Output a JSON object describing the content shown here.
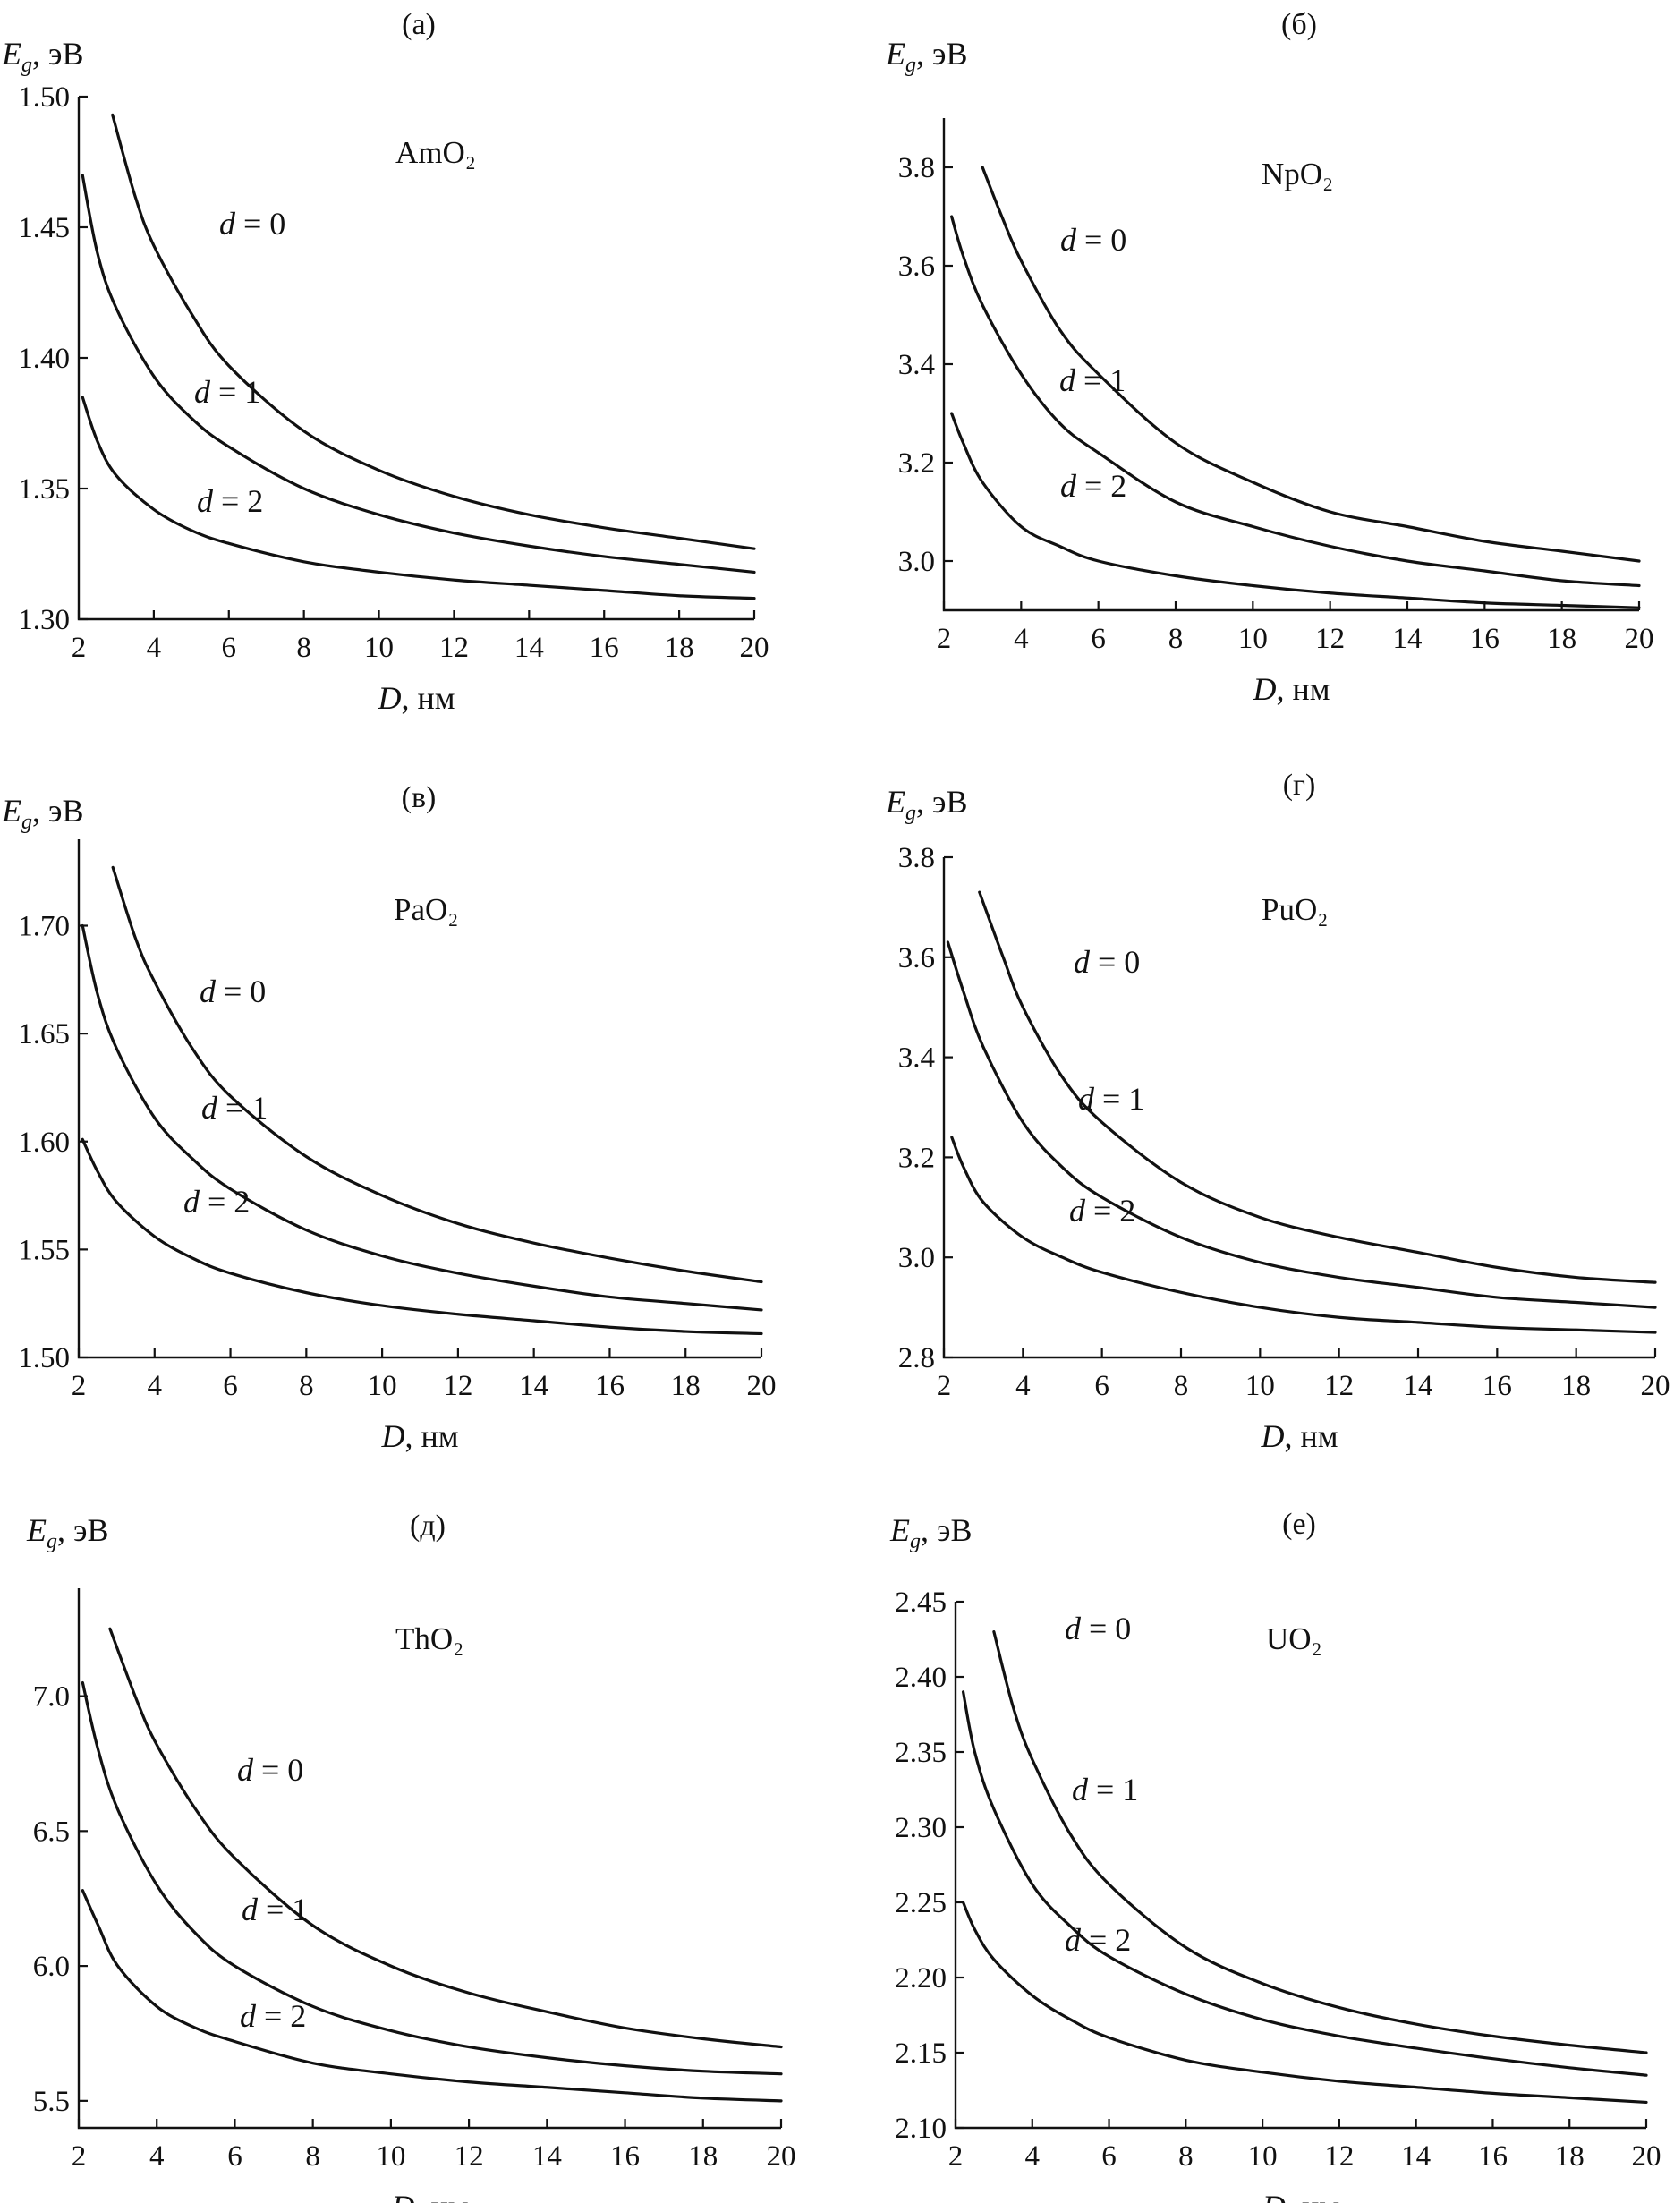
{
  "chart_data": [
    {
      "type": "line",
      "panel": "(а)",
      "compound": "AmO₂",
      "ylabel": "E_g, эВ",
      "xlabel": "D, нм",
      "xlim": [
        2,
        20
      ],
      "ylim": [
        1.3,
        1.5
      ],
      "xticks": [
        "2",
        "4",
        "6",
        "8",
        "10",
        "12",
        "14",
        "16",
        "18",
        "20"
      ],
      "yticks": [
        "1.30",
        "1.35",
        "1.40",
        "1.45",
        "1.50"
      ],
      "series": [
        {
          "name": "d = 0",
          "x": [
            2.9,
            3.5,
            4,
            5,
            6,
            8,
            10,
            12,
            14,
            16,
            18,
            20
          ],
          "values": [
            1.493,
            1.462,
            1.443,
            1.417,
            1.397,
            1.372,
            1.357,
            1.347,
            1.34,
            1.335,
            1.331,
            1.327
          ]
        },
        {
          "name": "d = 1",
          "x": [
            2.1,
            2.5,
            3,
            4,
            5,
            6,
            8,
            10,
            12,
            14,
            16,
            18,
            20
          ],
          "values": [
            1.47,
            1.44,
            1.419,
            1.393,
            1.377,
            1.366,
            1.35,
            1.34,
            1.333,
            1.328,
            1.324,
            1.321,
            1.318
          ]
        },
        {
          "name": "d = 2",
          "x": [
            2.1,
            2.5,
            3,
            4,
            5,
            6,
            8,
            10,
            12,
            14,
            16,
            18,
            20
          ],
          "values": [
            1.385,
            1.368,
            1.355,
            1.342,
            1.334,
            1.329,
            1.322,
            1.318,
            1.315,
            1.313,
            1.311,
            1.309,
            1.308
          ]
        }
      ]
    },
    {
      "type": "line",
      "panel": "(б)",
      "compound": "NpO₂",
      "ylabel": "E_g, эВ",
      "xlabel": "D, нм",
      "xlim": [
        2,
        20
      ],
      "ylim": [
        2.9,
        3.9
      ],
      "xticks": [
        "2",
        "4",
        "6",
        "8",
        "10",
        "12",
        "14",
        "16",
        "18",
        "20"
      ],
      "yticks": [
        "3.0",
        "3.2",
        "3.4",
        "3.6",
        "3.8"
      ],
      "series": [
        {
          "name": "d = 0",
          "x": [
            3,
            3.5,
            4,
            5,
            6,
            8,
            10,
            12,
            14,
            16,
            18,
            20
          ],
          "values": [
            3.8,
            3.7,
            3.61,
            3.47,
            3.38,
            3.24,
            3.16,
            3.1,
            3.07,
            3.04,
            3.02,
            3.0
          ]
        },
        {
          "name": "d = 1",
          "x": [
            2.2,
            2.5,
            3,
            4,
            5,
            6,
            8,
            10,
            12,
            14,
            16,
            18,
            20
          ],
          "values": [
            3.7,
            3.62,
            3.52,
            3.38,
            3.28,
            3.22,
            3.12,
            3.07,
            3.03,
            3.0,
            2.98,
            2.96,
            2.95
          ]
        },
        {
          "name": "d = 2",
          "x": [
            2.2,
            2.5,
            3,
            4,
            5,
            6,
            8,
            10,
            12,
            14,
            16,
            18,
            20
          ],
          "values": [
            3.3,
            3.24,
            3.16,
            3.07,
            3.03,
            3.0,
            2.97,
            2.95,
            2.935,
            2.925,
            2.915,
            2.91,
            2.905
          ]
        }
      ]
    },
    {
      "type": "line",
      "panel": "(в)",
      "compound": "PaO₂",
      "ylabel": "E_g, эВ",
      "xlabel": "D, нм",
      "xlim": [
        2,
        20
      ],
      "ylim": [
        1.5,
        1.74
      ],
      "xticks": [
        "2",
        "4",
        "6",
        "8",
        "10",
        "12",
        "14",
        "16",
        "18",
        "20"
      ],
      "yticks": [
        "1.50",
        "1.55",
        "1.60",
        "1.65",
        "1.70"
      ],
      "series": [
        {
          "name": "d = 0",
          "x": [
            2.9,
            3.5,
            4,
            5,
            6,
            8,
            10,
            12,
            14,
            16,
            18,
            20
          ],
          "values": [
            1.727,
            1.694,
            1.674,
            1.643,
            1.621,
            1.593,
            1.575,
            1.562,
            1.553,
            1.546,
            1.54,
            1.535
          ]
        },
        {
          "name": "d = 1",
          "x": [
            2.1,
            2.5,
            3,
            4,
            5,
            6,
            8,
            10,
            12,
            14,
            16,
            18,
            20
          ],
          "values": [
            1.7,
            1.668,
            1.643,
            1.611,
            1.592,
            1.578,
            1.559,
            1.547,
            1.539,
            1.533,
            1.528,
            1.525,
            1.522
          ]
        },
        {
          "name": "d = 2",
          "x": [
            2.1,
            2.5,
            3,
            4,
            5,
            6,
            8,
            10,
            12,
            14,
            16,
            18,
            20
          ],
          "values": [
            1.601,
            1.586,
            1.572,
            1.556,
            1.546,
            1.539,
            1.53,
            1.524,
            1.52,
            1.517,
            1.514,
            1.512,
            1.511
          ]
        }
      ]
    },
    {
      "type": "line",
      "panel": "(г)",
      "compound": "PuO₂",
      "ylabel": "E_g, эВ",
      "xlabel": "D, нм",
      "xlim": [
        2,
        20
      ],
      "ylim": [
        2.8,
        3.8
      ],
      "xticks": [
        "2",
        "4",
        "6",
        "8",
        "10",
        "12",
        "14",
        "16",
        "18",
        "20"
      ],
      "yticks": [
        "2.8",
        "3.0",
        "3.2",
        "3.4",
        "3.6",
        "3.8"
      ],
      "series": [
        {
          "name": "d = 0",
          "x": [
            2.9,
            3.5,
            4,
            5,
            6,
            8,
            10,
            12,
            14,
            16,
            18,
            20
          ],
          "values": [
            3.73,
            3.6,
            3.5,
            3.36,
            3.27,
            3.15,
            3.08,
            3.04,
            3.01,
            2.98,
            2.96,
            2.95
          ]
        },
        {
          "name": "d = 1",
          "x": [
            2.1,
            2.5,
            3,
            4,
            5,
            6,
            8,
            10,
            12,
            14,
            16,
            18,
            20
          ],
          "values": [
            3.63,
            3.53,
            3.42,
            3.27,
            3.18,
            3.12,
            3.04,
            2.99,
            2.96,
            2.94,
            2.92,
            2.91,
            2.9
          ]
        },
        {
          "name": "d = 2",
          "x": [
            2.2,
            2.5,
            3,
            4,
            5,
            6,
            8,
            10,
            12,
            14,
            16,
            18,
            20
          ],
          "values": [
            3.24,
            3.18,
            3.11,
            3.04,
            3.0,
            2.97,
            2.93,
            2.9,
            2.88,
            2.87,
            2.86,
            2.855,
            2.85
          ]
        }
      ]
    },
    {
      "type": "line",
      "panel": "(д)",
      "compound": "ThO₂",
      "ylabel": "E_g, эВ",
      "xlabel": "D, нм",
      "xlim": [
        2,
        20
      ],
      "ylim": [
        5.4,
        7.4
      ],
      "xticks": [
        "2",
        "4",
        "6",
        "8",
        "10",
        "12",
        "14",
        "16",
        "18",
        "20"
      ],
      "yticks": [
        "5.5",
        "6.0",
        "6.5",
        "7.0"
      ],
      "series": [
        {
          "name": "d = 0",
          "x": [
            2.8,
            3.5,
            4,
            5,
            6,
            8,
            10,
            12,
            14,
            16,
            18,
            20
          ],
          "values": [
            7.25,
            6.98,
            6.82,
            6.58,
            6.4,
            6.15,
            6.0,
            5.9,
            5.83,
            5.77,
            5.73,
            5.7
          ]
        },
        {
          "name": "d = 1",
          "x": [
            2.1,
            2.5,
            3,
            4,
            5,
            6,
            8,
            10,
            12,
            14,
            16,
            18,
            20
          ],
          "values": [
            7.05,
            6.8,
            6.58,
            6.3,
            6.12,
            6.0,
            5.85,
            5.76,
            5.7,
            5.66,
            5.63,
            5.61,
            5.6
          ]
        },
        {
          "name": "d = 2",
          "x": [
            2.1,
            2.5,
            3,
            4,
            5,
            6,
            8,
            10,
            12,
            14,
            16,
            18,
            20
          ],
          "values": [
            6.28,
            6.15,
            6.0,
            5.85,
            5.77,
            5.72,
            5.64,
            5.6,
            5.57,
            5.55,
            5.53,
            5.51,
            5.5
          ]
        }
      ]
    },
    {
      "type": "line",
      "panel": "(е)",
      "compound": "UO₂",
      "ylabel": "E_g, эВ",
      "xlabel": "D, нм",
      "xlim": [
        2,
        20
      ],
      "ylim": [
        2.1,
        2.45
      ],
      "xticks": [
        "2",
        "4",
        "6",
        "8",
        "10",
        "12",
        "14",
        "16",
        "18",
        "20"
      ],
      "yticks": [
        "2.10",
        "2.15",
        "2.20",
        "2.25",
        "2.30",
        "2.35",
        "2.40",
        "2.45"
      ],
      "series": [
        {
          "name": "d = 0",
          "x": [
            3,
            3.5,
            4,
            5,
            6,
            8,
            10,
            12,
            14,
            16,
            18,
            20
          ],
          "values": [
            2.43,
            2.38,
            2.345,
            2.295,
            2.262,
            2.22,
            2.196,
            2.18,
            2.169,
            2.161,
            2.155,
            2.15
          ]
        },
        {
          "name": "d = 1",
          "x": [
            2.2,
            2.5,
            3,
            4,
            5,
            6,
            8,
            10,
            12,
            14,
            16,
            18,
            20
          ],
          "values": [
            2.39,
            2.35,
            2.312,
            2.262,
            2.234,
            2.214,
            2.189,
            2.172,
            2.161,
            2.153,
            2.146,
            2.14,
            2.135
          ]
        },
        {
          "name": "d = 2",
          "x": [
            2.2,
            2.5,
            3,
            4,
            5,
            6,
            8,
            10,
            12,
            14,
            16,
            18,
            20
          ],
          "values": [
            2.25,
            2.232,
            2.212,
            2.188,
            2.172,
            2.16,
            2.145,
            2.137,
            2.131,
            2.127,
            2.123,
            2.12,
            2.117
          ]
        }
      ]
    }
  ]
}
